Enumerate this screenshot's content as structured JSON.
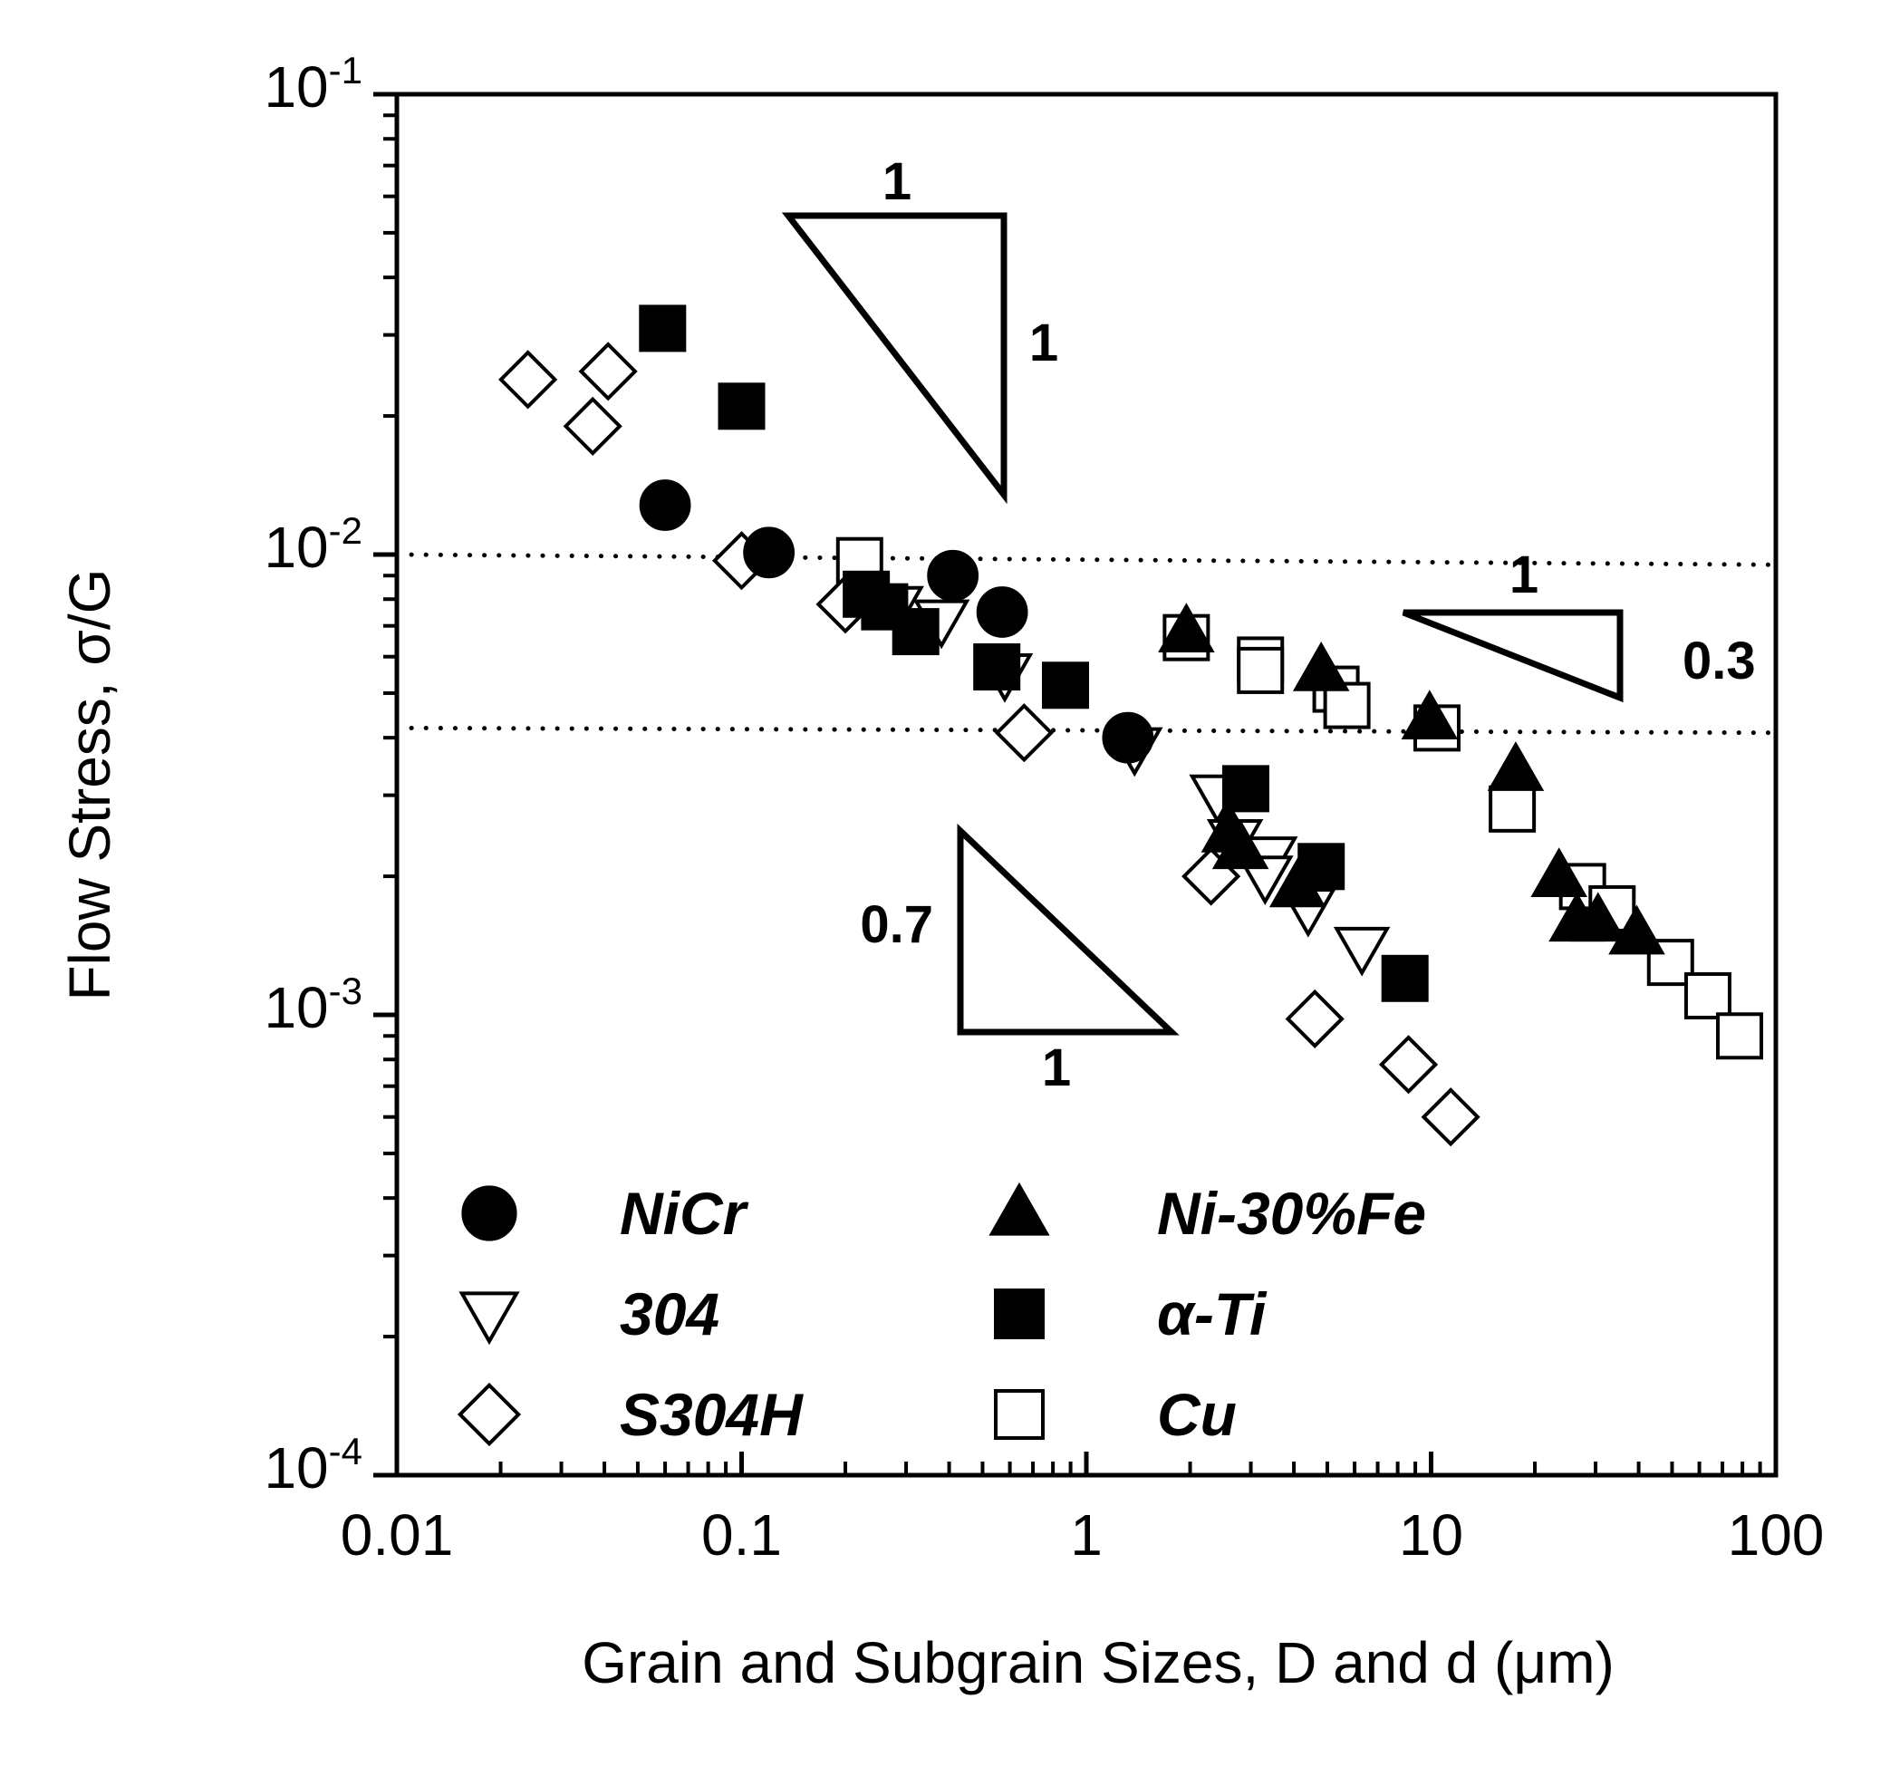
{
  "chart_data": {
    "type": "scatter",
    "scale": {
      "x": "log",
      "y": "log"
    },
    "xlabel": "Grain and Subgrain Sizes, D and d (μm)",
    "ylabel": "Flow Stress, σ/G",
    "xlim": [
      0.01,
      100
    ],
    "ylim": [
      0.0001,
      0.1
    ],
    "x_ticks": [
      {
        "value": 0.01,
        "label": "0.01"
      },
      {
        "value": 0.1,
        "label": "0.1"
      },
      {
        "value": 1,
        "label": "1"
      },
      {
        "value": 10,
        "label": "10"
      },
      {
        "value": 100,
        "label": "100"
      }
    ],
    "y_ticks": [
      {
        "value": 0.0001,
        "base": "10",
        "exp": "-4"
      },
      {
        "value": 0.001,
        "base": "10",
        "exp": "-3"
      },
      {
        "value": 0.01,
        "base": "10",
        "exp": "-2"
      },
      {
        "value": 0.1,
        "base": "10",
        "exp": "-1"
      }
    ],
    "legend_position": "bottom-left",
    "reference_lines": [
      {
        "style": "dotted",
        "y_left": 0.01,
        "y_right": 0.0095
      },
      {
        "style": "dotted",
        "y_left": 0.0042,
        "y_right": 0.0041
      }
    ],
    "slope_triangles": [
      {
        "run_label": "1",
        "rise_label": "1"
      },
      {
        "run_label": "1",
        "rise_label": "0.7"
      },
      {
        "run_label": "1",
        "rise_label": "0.3"
      }
    ],
    "series": [
      {
        "name": "NiCr",
        "marker": "circle",
        "fill": "filled",
        "points": [
          [
            0.06,
            0.0128
          ],
          [
            0.12,
            0.0101
          ],
          [
            0.41,
            0.009
          ],
          [
            0.57,
            0.0075
          ],
          [
            1.32,
            0.004
          ]
        ]
      },
      {
        "name": "304",
        "marker": "triangle-down",
        "fill": "open",
        "points": [
          [
            0.28,
            0.0077
          ],
          [
            0.38,
            0.0072
          ],
          [
            0.58,
            0.0055
          ],
          [
            1.38,
            0.0038
          ],
          [
            2.4,
            0.003
          ],
          [
            2.7,
            0.0024
          ],
          [
            3.4,
            0.0022
          ],
          [
            3.3,
            0.002
          ],
          [
            4.4,
            0.0017
          ],
          [
            6.3,
            0.0014
          ]
        ]
      },
      {
        "name": "S304H",
        "marker": "diamond",
        "fill": "open",
        "points": [
          [
            0.024,
            0.024
          ],
          [
            0.041,
            0.025
          ],
          [
            0.037,
            0.019
          ],
          [
            0.1,
            0.0097
          ],
          [
            0.2,
            0.0078
          ],
          [
            0.66,
            0.0041
          ],
          [
            2.3,
            0.002
          ],
          [
            4.6,
            0.00098
          ],
          [
            8.6,
            0.00078
          ],
          [
            11.4,
            0.0006
          ]
        ]
      },
      {
        "name": "Ni-30%Fe",
        "marker": "triangle-up",
        "fill": "filled",
        "points": [
          [
            1.95,
            0.0068
          ],
          [
            2.6,
            0.0025
          ],
          [
            2.8,
            0.0023
          ],
          [
            4.1,
            0.0019
          ],
          [
            4.8,
            0.0056
          ],
          [
            9.9,
            0.0044
          ],
          [
            17.6,
            0.0034
          ],
          [
            23.5,
            0.002
          ],
          [
            26.5,
            0.0016
          ],
          [
            30.5,
            0.0016
          ],
          [
            39.5,
            0.0015
          ]
        ]
      },
      {
        "name": "α-Ti",
        "marker": "square",
        "fill": "filled",
        "points": [
          [
            0.059,
            0.031
          ],
          [
            0.1,
            0.021
          ],
          [
            0.23,
            0.0082
          ],
          [
            0.26,
            0.0077
          ],
          [
            0.32,
            0.0068
          ],
          [
            0.55,
            0.0057
          ],
          [
            0.87,
            0.0052
          ],
          [
            2.9,
            0.0031
          ],
          [
            4.8,
            0.0021
          ],
          [
            8.4,
            0.0012
          ]
        ]
      },
      {
        "name": "Cu",
        "marker": "square",
        "fill": "open",
        "points": [
          [
            0.22,
            0.0097
          ],
          [
            1.95,
            0.0066
          ],
          [
            3.2,
            0.0059
          ],
          [
            3.2,
            0.0056
          ],
          [
            5.3,
            0.0051
          ],
          [
            5.7,
            0.0047
          ],
          [
            10.4,
            0.0042
          ],
          [
            17.2,
            0.0028
          ],
          [
            27.5,
            0.0019
          ],
          [
            33.5,
            0.0017
          ],
          [
            49.5,
            0.0013
          ],
          [
            63.5,
            0.0011
          ],
          [
            78.5,
            0.0009
          ]
        ]
      }
    ]
  }
}
